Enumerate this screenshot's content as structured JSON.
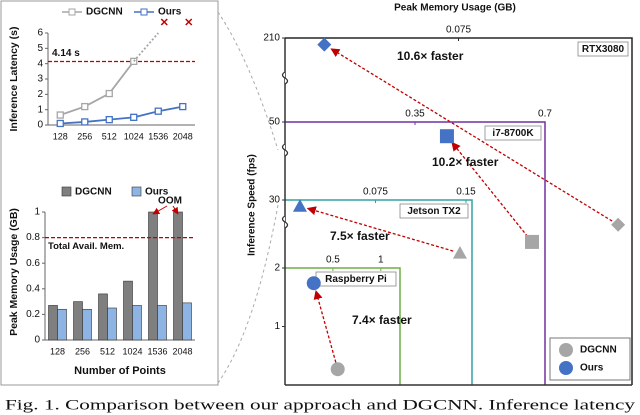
{
  "chart_data": [
    {
      "type": "line",
      "y_label": "Inference Latency (s)",
      "categories": [
        "128",
        "256",
        "512",
        "1024",
        "1536",
        "2048"
      ],
      "series": [
        {
          "name": "DGCNN",
          "color": "#a6a6a6",
          "values": [
            0.65,
            1.2,
            2.05,
            4.15,
            null,
            null
          ]
        },
        {
          "name": "Ours",
          "color": "#4472c4",
          "values": [
            0.1,
            0.2,
            0.35,
            0.5,
            0.9,
            1.2
          ]
        }
      ],
      "threshold": {
        "value": 4.14,
        "label": "4.14 s",
        "color": "#c00000"
      },
      "ylim": [
        0,
        6
      ],
      "yticks": [
        0,
        1,
        2,
        3,
        4,
        5,
        6
      ]
    },
    {
      "type": "bar",
      "y_label": "Peak Memory Usage (GB)",
      "x_label": "Number of Points",
      "categories": [
        "128",
        "256",
        "512",
        "1024",
        "1536",
        "2048"
      ],
      "series": [
        {
          "name": "DGCNN",
          "color": "#7f7f7f",
          "values": [
            0.27,
            0.3,
            0.36,
            0.46,
            1,
            1
          ]
        },
        {
          "name": "Ours",
          "color": "#8eb4e3",
          "values": [
            0.24,
            0.24,
            0.25,
            0.27,
            0.27,
            0.29
          ]
        }
      ],
      "threshold": {
        "value": 0.8,
        "label": "Total Avail. Mem.",
        "color": "#c00000"
      },
      "annotation": "OOM",
      "ylim": [
        0,
        1
      ],
      "yticks": [
        0,
        0.2,
        0.4,
        0.6,
        0.8,
        1
      ]
    },
    {
      "type": "scatter",
      "x_label": "Peak Memory Usage (GB)",
      "y_label": "Inference Speed (fps)",
      "series": [
        {
          "name": "DGCNN",
          "color": "#a6a6a6"
        },
        {
          "name": "Ours",
          "color": "#4472c4"
        }
      ],
      "devices": [
        {
          "name": "RTX3080",
          "color": "#262626",
          "marker": "diamond",
          "xlim": [
            0,
            0.15
          ],
          "ylim": [
            0,
            210
          ],
          "xticks": [
            0.075
          ],
          "yticks": [
            210
          ],
          "x": [
            0.144,
            0.017
          ],
          "y": [
            97,
            206
          ],
          "speedup": "10.6× faster"
        },
        {
          "name": "i7-8700K",
          "color": "#7030a0",
          "marker": "square",
          "xlim": [
            0,
            0.7
          ],
          "ylim": [
            0,
            50
          ],
          "xticks": [
            0.35,
            0.7
          ],
          "yticks": [
            50
          ],
          "x": [
            0.665,
            0.436
          ],
          "y": [
            27.2,
            47.3
          ],
          "speedup": "10.2× faster"
        },
        {
          "name": "Jetson TX2",
          "color": "#31a3a3",
          "marker": "triangle",
          "xlim": [
            0,
            0.155
          ],
          "ylim": [
            0,
            30
          ],
          "xticks": [
            0.075,
            0.15
          ],
          "yticks": [
            30
          ],
          "x": [
            0.145,
            0.0124
          ],
          "y": [
            21.4,
            29
          ],
          "speedup": "7.5× faster"
        },
        {
          "name": "Raspberry Pi",
          "color": "#70ad47",
          "marker": "circle",
          "xlim": [
            0,
            1.2
          ],
          "ylim": [
            0,
            2
          ],
          "xticks": [
            0.5,
            1
          ],
          "yticks": [
            1,
            2
          ],
          "x": [
            0.55,
            0.3
          ],
          "y": [
            0.27,
            1.74
          ],
          "speedup": "7.4× faster"
        }
      ]
    }
  ],
  "caption": "Fig. 1.   Comparison between our approach and DGCNN. Inference latency"
}
